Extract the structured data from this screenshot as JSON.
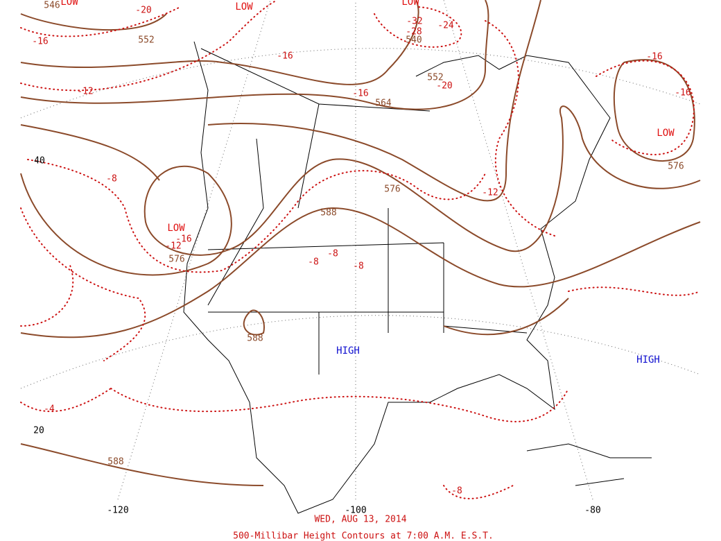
{
  "map": {
    "lows": [
      "LOW",
      "LOW",
      "LOW",
      "LOW",
      "LOW"
    ],
    "highs": [
      "HIGH",
      "HIGH"
    ],
    "height_labels": [
      546,
      552,
      540,
      552,
      564,
      576,
      588,
      576,
      588,
      576,
      588
    ],
    "temperature_labels": [
      -20,
      -16,
      -12,
      -16,
      -16,
      -20,
      -24,
      -28,
      -32,
      -16,
      -16,
      -8,
      -16,
      -12,
      -8,
      -8,
      -8,
      -12,
      -4,
      -8
    ],
    "latitude_labels": [
      40,
      20
    ],
    "longitude_labels": [
      -120,
      -100,
      -80
    ],
    "caption": {
      "date": "WED, AUG 13, 2014",
      "title": "500-Millibar Height Contours at 7:00 A.M. E.S.T."
    }
  }
}
